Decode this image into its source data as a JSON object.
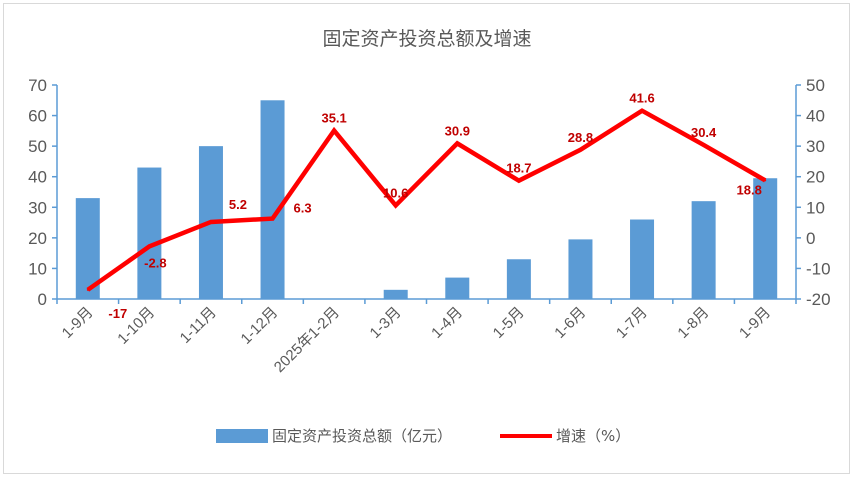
{
  "chart_data": {
    "type": "bar+line",
    "title": "固定资产投资总额及增速",
    "categories": [
      "1-9月",
      "1-10月",
      "1-11月",
      "1-12月",
      "2025年1-2月",
      "1-3月",
      "1-4月",
      "1-5月",
      "1-6月",
      "1-7月",
      "1-8月",
      "1-9月"
    ],
    "series": [
      {
        "name": "固定资产投资总额（亿元）",
        "type": "bar",
        "axis": "left",
        "color": "#5b9bd5",
        "values": [
          33,
          43,
          50,
          65,
          0,
          3,
          7,
          13,
          19.5,
          26,
          32,
          39.5
        ]
      },
      {
        "name": "增速（%）",
        "type": "line",
        "axis": "right",
        "color": "#ff0000",
        "values": [
          -17,
          -2.8,
          5.2,
          6.3,
          35.1,
          10.6,
          30.9,
          18.7,
          28.8,
          41.6,
          30.4,
          18.8
        ],
        "labels": [
          "-17",
          "-2.8",
          "5.2",
          "6.3",
          "35.1",
          "10.6",
          "30.9",
          "18.7",
          "28.8",
          "41.6",
          "30.4",
          "18.8"
        ]
      }
    ],
    "y_left": {
      "min": 0,
      "max": 70,
      "ticks": [
        0,
        10,
        20,
        30,
        40,
        50,
        60,
        70
      ]
    },
    "y_right": {
      "min": -20,
      "max": 50,
      "ticks": [
        -20,
        -10,
        0,
        10,
        20,
        30,
        40,
        50
      ]
    },
    "grid": false,
    "legend_position": "bottom"
  }
}
